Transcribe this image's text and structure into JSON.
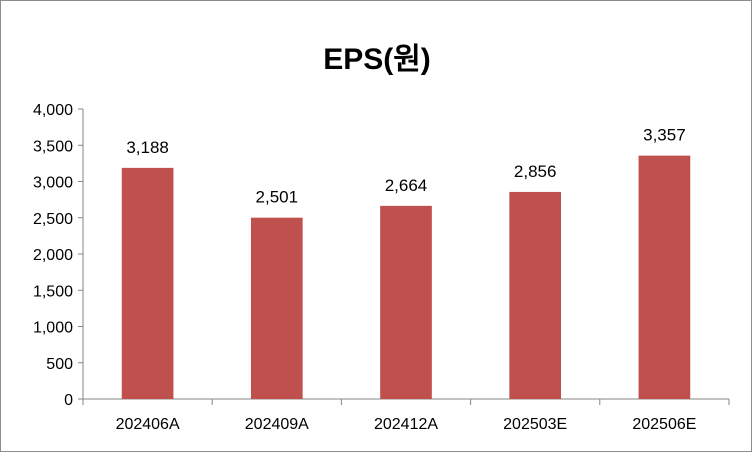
{
  "chart_data": {
    "type": "bar",
    "title": "EPS(원)",
    "categories": [
      "202406A",
      "202409A",
      "202412A",
      "202503E",
      "202506E"
    ],
    "values": [
      3188,
      2501,
      2664,
      2856,
      3357
    ],
    "data_labels": [
      "3,188",
      "2,501",
      "2,664",
      "2,856",
      "3,357"
    ],
    "yticks": [
      "0",
      "500",
      "1,000",
      "1,500",
      "2,000",
      "2,500",
      "3,000",
      "3,500",
      "4,000"
    ],
    "ylim": [
      0,
      4000
    ],
    "xlabel": "",
    "ylabel": "",
    "grid": false,
    "legend": "none",
    "bar_color": "#c0504d"
  }
}
